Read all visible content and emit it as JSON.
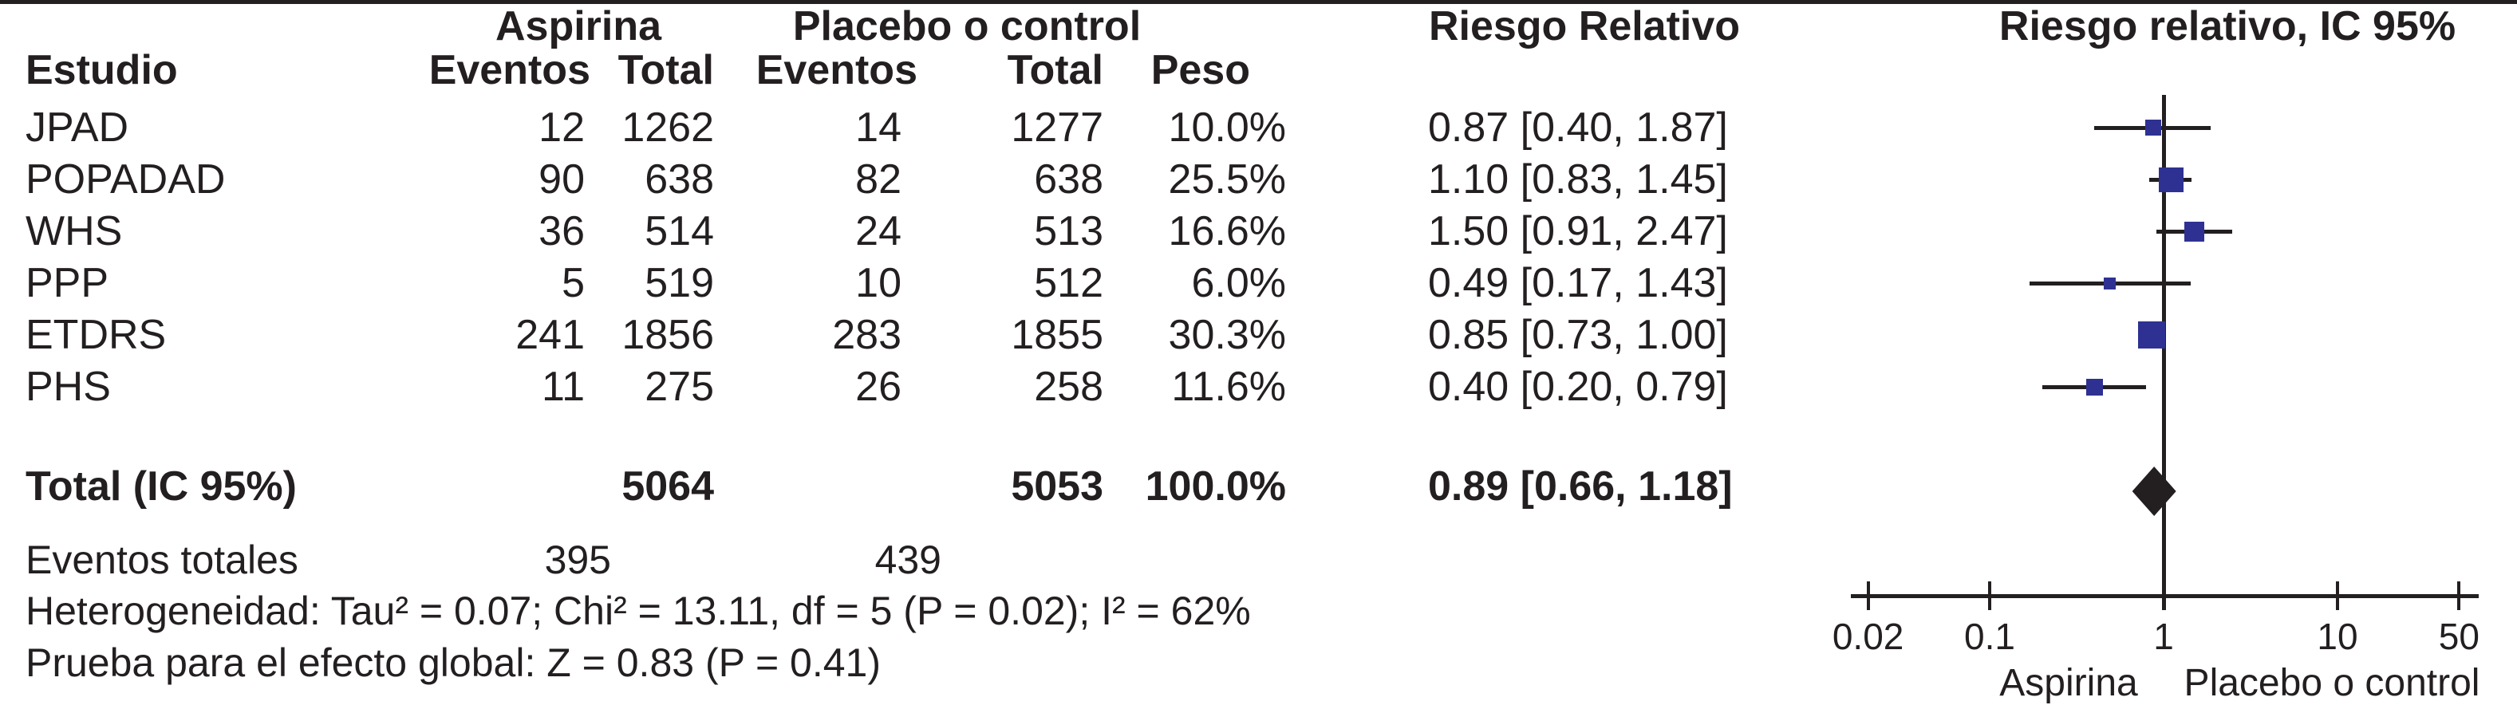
{
  "header": {
    "estudio": "Estudio",
    "group1": "Aspirina",
    "group2": "Placebo o control",
    "eventos1": "Eventos",
    "total1": "Total",
    "eventos2": "Eventos",
    "total2": "Total",
    "peso": "Peso",
    "rr": "Riesgo Relativo",
    "plot": "Riesgo relativo, IC 95%"
  },
  "rows": [
    {
      "study": "JPAD",
      "e1": "12",
      "t1": "1262",
      "e2": "14",
      "t2": "1277",
      "peso": "10.0%",
      "rr": "0.87 [0.40, 1.87]"
    },
    {
      "study": "POPADAD",
      "e1": "90",
      "t1": "638",
      "e2": "82",
      "t2": "638",
      "peso": "25.5%",
      "rr": "1.10 [0.83, 1.45]"
    },
    {
      "study": "WHS",
      "e1": "36",
      "t1": "514",
      "e2": "24",
      "t2": "513",
      "peso": "16.6%",
      "rr": "1.50 [0.91, 2.47]"
    },
    {
      "study": "PPP",
      "e1": "5",
      "t1": "519",
      "e2": "10",
      "t2": "512",
      "peso": "6.0%",
      "rr": "0.49 [0.17, 1.43]"
    },
    {
      "study": "ETDRS",
      "e1": "241",
      "t1": "1856",
      "e2": "283",
      "t2": "1855",
      "peso": "30.3%",
      "rr": "0.85 [0.73, 1.00]"
    },
    {
      "study": "PHS",
      "e1": "11",
      "t1": "275",
      "e2": "26",
      "t2": "258",
      "peso": "11.6%",
      "rr": "0.40 [0.20, 0.79]"
    }
  ],
  "total": {
    "label": "Total (IC 95%)",
    "t1": "5064",
    "t2": "5053",
    "peso": "100.0%",
    "rr": "0.89 [0.66, 1.18]"
  },
  "events_total": {
    "label": "Eventos totales",
    "v1": "395",
    "v2": "439"
  },
  "stats": {
    "heterogeneity": "Heterogeneidad: Tau² = 0.07; Chi² = 13.11, df = 5 (P = 0.02); I² = 62%",
    "overall": "Prueba para el efecto global: Z = 0.83 (P = 0.41)"
  },
  "colors": {
    "marker": "#2e3192",
    "line": "#231f20",
    "text": "#231f20",
    "background": "#ffffff"
  },
  "chart_data": {
    "type": "forest",
    "title": "Riesgo relativo, IC 95%",
    "scale": "log10",
    "x_ticks": [
      0.02,
      0.1,
      1,
      10,
      50
    ],
    "null_line": 1,
    "axis_labels": {
      "left": "Aspirina",
      "right": "Placebo o control"
    },
    "studies": [
      {
        "name": "JPAD",
        "rr": 0.87,
        "ci_low": 0.4,
        "ci_high": 1.87,
        "weight": 10.0
      },
      {
        "name": "POPADAD",
        "rr": 1.1,
        "ci_low": 0.83,
        "ci_high": 1.45,
        "weight": 25.5
      },
      {
        "name": "WHS",
        "rr": 1.5,
        "ci_low": 0.91,
        "ci_high": 2.47,
        "weight": 16.6
      },
      {
        "name": "PPP",
        "rr": 0.49,
        "ci_low": 0.17,
        "ci_high": 1.43,
        "weight": 6.0
      },
      {
        "name": "ETDRS",
        "rr": 0.85,
        "ci_low": 0.73,
        "ci_high": 1.0,
        "weight": 30.3
      },
      {
        "name": "PHS",
        "rr": 0.4,
        "ci_low": 0.2,
        "ci_high": 0.79,
        "weight": 11.6
      }
    ],
    "total": {
      "name": "Total (IC 95%)",
      "rr": 0.89,
      "ci_low": 0.66,
      "ci_high": 1.18
    }
  }
}
